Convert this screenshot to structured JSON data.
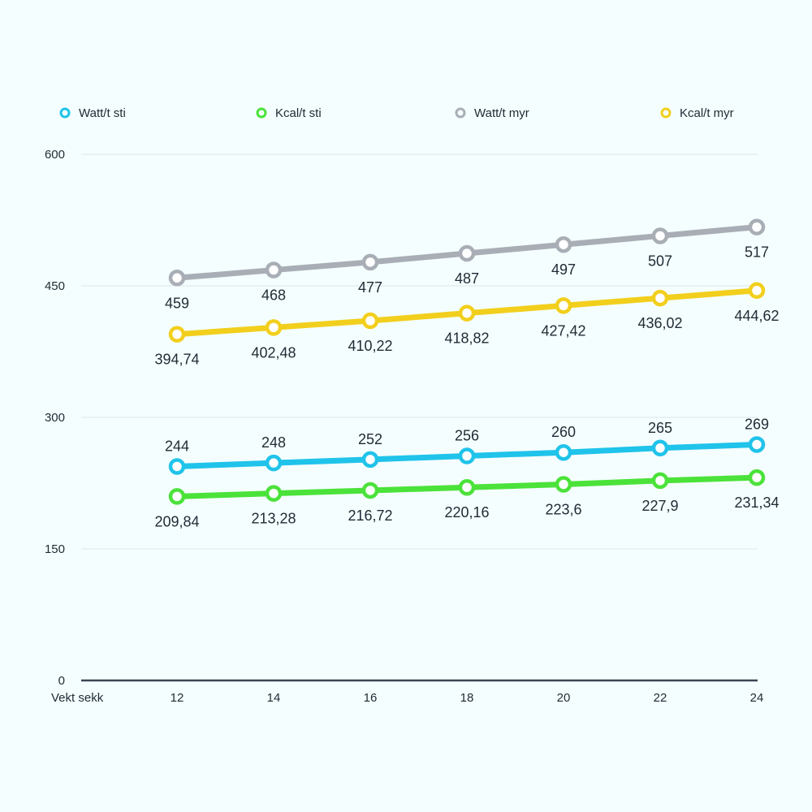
{
  "chart_data": {
    "type": "line",
    "xlabel": "Vekt sekk",
    "ylabel": "",
    "x": [
      12,
      14,
      16,
      18,
      20,
      22,
      24
    ],
    "x_tick_labels": [
      "12",
      "14",
      "16",
      "18",
      "20",
      "22",
      "24"
    ],
    "ylim": [
      0,
      600
    ],
    "y_ticks": [
      0,
      150,
      300,
      450,
      600
    ],
    "y_tick_labels": [
      "0",
      "150",
      "300",
      "450",
      "600"
    ],
    "grid": true,
    "legend_position": "top",
    "series": [
      {
        "name": "Watt/t sti",
        "color": "#20c3ea",
        "values": [
          244,
          248,
          252,
          256,
          260,
          265,
          269
        ],
        "labels": [
          "244",
          "248",
          "252",
          "256",
          "260",
          "265",
          "269"
        ],
        "label_position": "above"
      },
      {
        "name": "Kcal/t sti",
        "color": "#4be23a",
        "values": [
          209.84,
          213.28,
          216.72,
          220.16,
          223.6,
          227.9,
          231.34
        ],
        "labels": [
          "209,84",
          "213,28",
          "216,72",
          "220,16",
          "223,6",
          "227,9",
          "231,34"
        ],
        "label_position": "below"
      },
      {
        "name": "Watt/t myr",
        "color": "#a9aeb6",
        "values": [
          459,
          468,
          477,
          487,
          497,
          507,
          517
        ],
        "labels": [
          "459",
          "468",
          "477",
          "487",
          "497",
          "507",
          "517"
        ],
        "label_position": "below"
      },
      {
        "name": "Kcal/t myr",
        "color": "#f2cf1d",
        "values": [
          394.74,
          402.48,
          410.22,
          418.82,
          427.42,
          436.02,
          444.62
        ],
        "labels": [
          "394,74",
          "402,48",
          "410,22",
          "418,82",
          "427,42",
          "436,02",
          "444,62"
        ],
        "label_position": "below"
      }
    ]
  }
}
